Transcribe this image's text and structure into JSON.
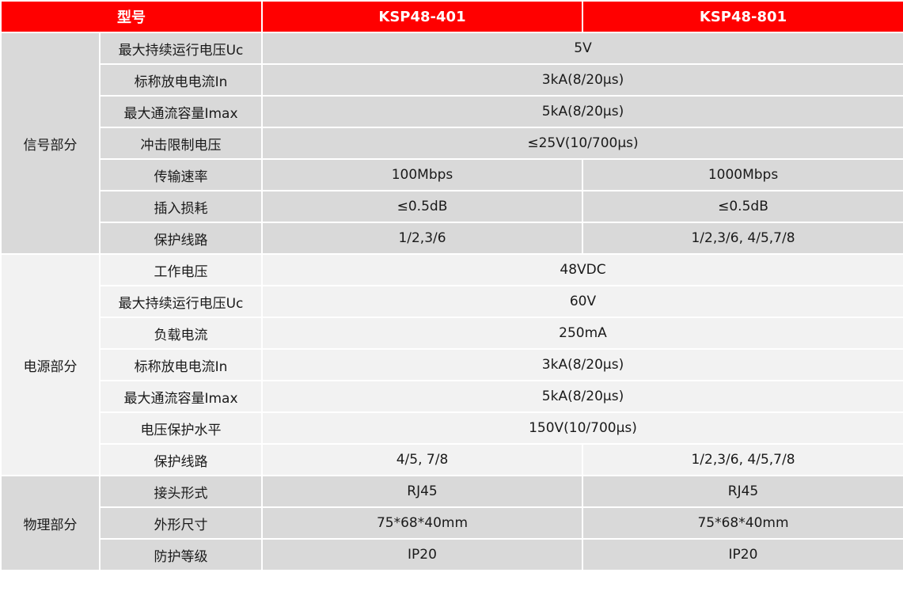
{
  "header": {
    "model_label": "型号",
    "col1": "KSP48-401",
    "col2": "KSP48-801"
  },
  "colors": {
    "header_bg": "#ff0000",
    "gray_bg": "#d9d9d9",
    "light_bg": "#f2f2f2"
  },
  "groups": [
    {
      "name": "信号部分",
      "rows": [
        {
          "param": "最大持续运行电压Uc",
          "merged": "5V"
        },
        {
          "param": "标称放电电流In",
          "merged": "3kA(8/20μs)"
        },
        {
          "param": "最大通流容量Imax",
          "merged": "5kA(8/20μs)"
        },
        {
          "param": "冲击限制电压",
          "merged": "≤25V(10/700μs)"
        },
        {
          "param": "传输速率",
          "v1": "100Mbps",
          "v2": "1000Mbps"
        },
        {
          "param": "插入损耗",
          "v1": "≤0.5dB",
          "v2": "≤0.5dB"
        },
        {
          "param": "保护线路",
          "v1": "1/2,3/6",
          "v2": "1/2,3/6, 4/5,7/8"
        }
      ]
    },
    {
      "name": "电源部分",
      "rows": [
        {
          "param": "工作电压",
          "merged": "48VDC"
        },
        {
          "param": "最大持续运行电压Uc",
          "merged": "60V"
        },
        {
          "param": "负载电流",
          "merged": "250mA"
        },
        {
          "param": "标称放电电流In",
          "merged": "3kA(8/20μs)"
        },
        {
          "param": "最大通流容量Imax",
          "merged": "5kA(8/20μs)"
        },
        {
          "param": "电压保护水平",
          "merged": "150V(10/700μs)"
        },
        {
          "param": "保护线路",
          "v1": "4/5, 7/8",
          "v2": "1/2,3/6, 4/5,7/8"
        }
      ]
    },
    {
      "name": "物理部分",
      "rows": [
        {
          "param": "接头形式",
          "v1": "RJ45",
          "v2": "RJ45"
        },
        {
          "param": "外形尺寸",
          "v1": "75*68*40mm",
          "v2": "75*68*40mm"
        },
        {
          "param": "防护等级",
          "v1": "IP20",
          "v2": "IP20"
        }
      ]
    }
  ]
}
